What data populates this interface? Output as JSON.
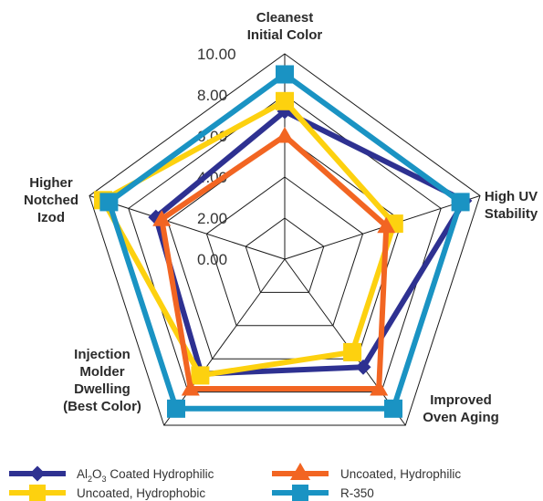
{
  "chart_data": {
    "type": "radar",
    "axes": [
      [
        "Cleanest",
        "Initial Color"
      ],
      [
        "High UV",
        "Stability"
      ],
      [
        "Improved",
        "Oven Aging"
      ],
      [
        "Injection",
        "Molder",
        "Dwelling",
        "(Best Color)"
      ],
      [
        "Higher",
        "Notched",
        "Izod"
      ]
    ],
    "ticks": [
      "10.00",
      "8.00",
      "6.00",
      "4.00",
      "2.00",
      "0.00"
    ],
    "tick_values": [
      10,
      8,
      6,
      4,
      2,
      0
    ],
    "rlim": [
      0,
      10
    ],
    "grid": true,
    "legend_position": "bottom",
    "series": [
      {
        "name": "Al2O3 Coated Hydrophilic",
        "color": "#2e3191",
        "marker": "diamond",
        "values": [
          7.2,
          9.2,
          6.5,
          6.9,
          6.6
        ]
      },
      {
        "name": "Uncoated, Hydrophobic",
        "color": "#fdd10f",
        "marker": "square",
        "values": [
          7.7,
          5.6,
          5.6,
          7.0,
          9.3
        ]
      },
      {
        "name": "Uncoated, Hydrophilic",
        "color": "#f26522",
        "marker": "triangle",
        "values": [
          6.0,
          5.2,
          7.8,
          7.8,
          6.3
        ]
      },
      {
        "name": "R-350",
        "color": "#1a93c3",
        "marker": "square",
        "values": [
          9.0,
          9.0,
          9.0,
          9.0,
          9.0
        ]
      }
    ],
    "legend": {
      "items": [
        {
          "prefix": "Al",
          "sub1": "2",
          "mid": "O",
          "sub2": "3",
          "suffix": " Coated Hydrophilic"
        },
        {
          "text": "Uncoated, Hydrophobic"
        },
        {
          "text": "Uncoated, Hydrophilic"
        },
        {
          "text": "R-350"
        }
      ]
    }
  }
}
